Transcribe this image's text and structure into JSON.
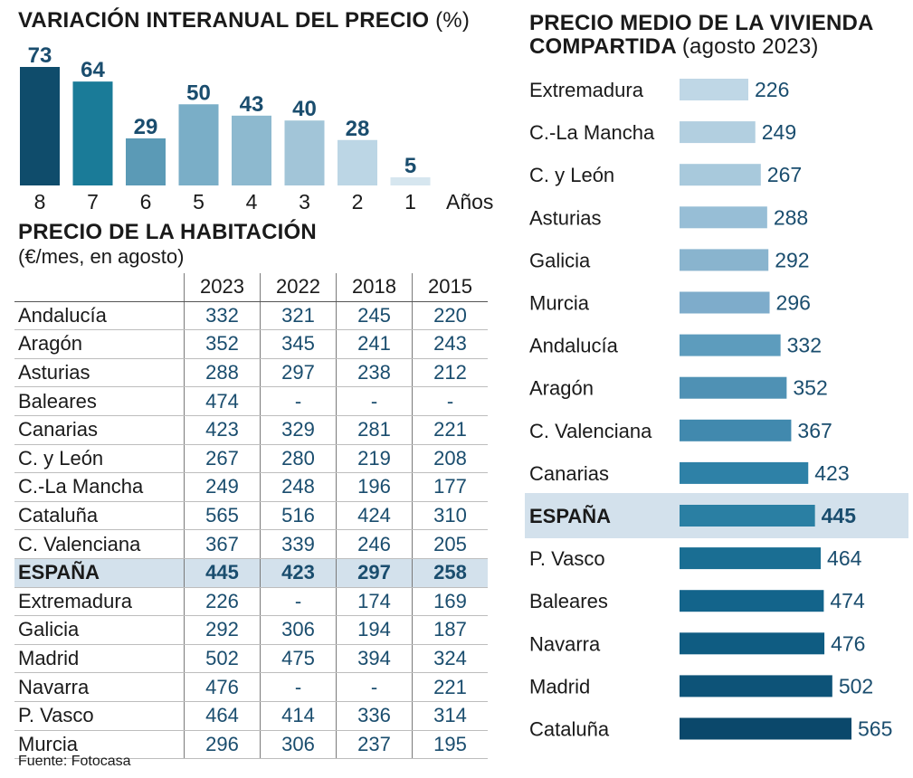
{
  "interanual": {
    "title": "VARIACIÓN INTERANUAL DEL PRECIO",
    "unit": "(%)",
    "axis_label": "Años"
  },
  "habitacion": {
    "title": "PRECIO DE LA HABITACIÓN",
    "subtitle": "(€/mes, en agosto)",
    "columns": [
      "2023",
      "2022",
      "2018",
      "2015"
    ],
    "rows": [
      {
        "region": "Andalucía",
        "values": [
          "332",
          "321",
          "245",
          "220"
        ]
      },
      {
        "region": "Aragón",
        "values": [
          "352",
          "345",
          "241",
          "243"
        ]
      },
      {
        "region": "Asturias",
        "values": [
          "288",
          "297",
          "238",
          "212"
        ]
      },
      {
        "region": "Baleares",
        "values": [
          "474",
          "-",
          "-",
          "-"
        ]
      },
      {
        "region": "Canarias",
        "values": [
          "423",
          "329",
          "281",
          "221"
        ]
      },
      {
        "region": "C. y León",
        "values": [
          "267",
          "280",
          "219",
          "208"
        ]
      },
      {
        "region": "C.-La Mancha",
        "values": [
          "249",
          "248",
          "196",
          "177"
        ]
      },
      {
        "region": "Cataluña",
        "values": [
          "565",
          "516",
          "424",
          "310"
        ]
      },
      {
        "region": "C. Valenciana",
        "values": [
          "367",
          "339",
          "246",
          "205"
        ]
      },
      {
        "region": "ESPAÑA",
        "values": [
          "445",
          "423",
          "297",
          "258"
        ],
        "highlight": true
      },
      {
        "region": "Extremadura",
        "values": [
          "226",
          "-",
          "174",
          "169"
        ]
      },
      {
        "region": "Galicia",
        "values": [
          "292",
          "306",
          "194",
          "187"
        ]
      },
      {
        "region": "Madrid",
        "values": [
          "502",
          "475",
          "394",
          "324"
        ]
      },
      {
        "region": "Navarra",
        "values": [
          "476",
          "-",
          "-",
          "221"
        ]
      },
      {
        "region": "P. Vasco",
        "values": [
          "464",
          "414",
          "336",
          "314"
        ]
      },
      {
        "region": "Murcia",
        "values": [
          "296",
          "306",
          "237",
          "195"
        ]
      }
    ]
  },
  "compartida": {
    "title": "PRECIO MEDIO DE LA VIVIENDA COMPARTIDA",
    "subtitle": "(agosto 2023)"
  },
  "source": "Fuente: Fotocasa",
  "colors": {
    "label_value": "#1a4d6e",
    "highlight_band": "#d3e1ec",
    "interanual_bars": [
      "#0f4c6b",
      "#1a7b98",
      "#5b9ab6",
      "#7aaec7",
      "#8db9cf",
      "#a2c5d8",
      "#bcd6e5",
      "#d6e6ef"
    ],
    "compartida_bars": [
      "#bfd7e6",
      "#b2cfe0",
      "#a8c9dc",
      "#97bed6",
      "#89b4ce",
      "#7eaccb",
      "#5d9cbd",
      "#4f91b4",
      "#4189ae",
      "#2e81a7",
      "#2a7fa3",
      "#1a6e93",
      "#13648b",
      "#0f5c82",
      "#0d5378",
      "#0b486b"
    ]
  },
  "chart_data": [
    {
      "type": "bar",
      "title": "VARIACIÓN INTERANUAL DEL PRECIO (%)",
      "xlabel": "Años",
      "categories": [
        "8",
        "7",
        "6",
        "5",
        "4",
        "3",
        "2",
        "1"
      ],
      "values": [
        73,
        64,
        29,
        50,
        43,
        40,
        28,
        5
      ],
      "ylim": [
        0,
        73
      ]
    },
    {
      "type": "bar",
      "orientation": "horizontal",
      "title": "PRECIO MEDIO DE LA VIVIENDA COMPARTIDA (agosto 2023)",
      "categories": [
        "Extremadura",
        "C.-La Mancha",
        "C. y León",
        "Asturias",
        "Galicia",
        "Murcia",
        "Andalucía",
        "Aragón",
        "C. Valenciana",
        "Canarias",
        "ESPAÑA",
        "P. Vasco",
        "Baleares",
        "Navarra",
        "Madrid",
        "Cataluña"
      ],
      "values": [
        226,
        249,
        267,
        288,
        292,
        296,
        332,
        352,
        367,
        423,
        445,
        464,
        474,
        476,
        502,
        565
      ],
      "highlight": "ESPAÑA"
    }
  ]
}
